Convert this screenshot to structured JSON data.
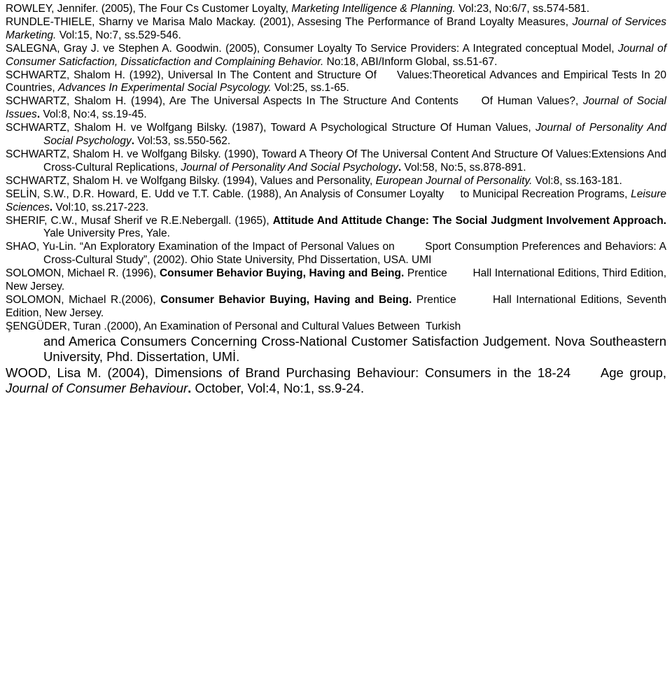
{
  "refs": {
    "rowley": {
      "author": "ROWLEY, Jennifer.",
      "year": "(2005),",
      "title": "The Four Cs Customer Loyalty,",
      "journal": "Marketing Intelligence & Planning.",
      "vol": "Vol:23, No:6/7, ss.574-581."
    },
    "rundle": {
      "line1a": "RUNDLE-THIELE, Sharny ve Marisa Malo Mackay.",
      "line1b": "(2001), Assesing The",
      "line2a": "Performance of",
      "line2b": "Brand Loyalty Measures,",
      "journal": "Journal of Services Marketing.",
      "vol": "Vol:15, No:7, ss.529-546."
    },
    "salegna": {
      "line1a": "SALEGNA, Gray J. ve Stephen A. Goodwin.",
      "line1b": "(2005), Consumer Loyalty To Service",
      "line2a": "Providers:",
      "line2b": "A Integrated conceptual Model,",
      "journal": "Journal of Consumer Saticfaction, Dissaticfaction          and Complaining Behavior.",
      "vol": "No:18, ABI/Inform Global, ss.51-67."
    },
    "schwartz92": {
      "line1a": "SCHWARTZ, Shalom H.",
      "line1b": "(1992), Universal In The Content and Structure Of",
      "line1c": "Values:Theoretical",
      "line2a": "Advances and Empirical Tests In 20 Countries,",
      "journal": "Advances In    Experimental    Social    Psycology.",
      "vol": "Vol:25, ss.1-65."
    },
    "schwartz94a": {
      "line1a": "SCHWARTZ, Shalom H.",
      "line1b": "(1994), Are The Universal Aspects In The Structure And Contents",
      "line1c": "Of",
      "line2a": "Human Values?,",
      "journal": "Journal of Social Issues",
      "bolddot": ".",
      "vol": "Vol:8, No:4, ss.19-45."
    },
    "schwartz87": {
      "line1": "SCHWARTZ, Shalom H. ve Wolfgang Bilsky.  (1987), Toward A Psychological Structure Of Human Values,",
      "journal": "Journal of Personality And Social Psychology",
      "bolddot": ".",
      "vol": "Vol:53, ss.550-562."
    },
    "schwartz90": {
      "line1a": "SCHWARTZ, Shalom H. ve Wolfgang Bilsky.",
      "line1b": "(1990), Toward A Theory Of The Universal Content And Structure Of Values:Extensions And Cross-Cultural Replications,",
      "journal": "Journal of Personality And Social Psychology",
      "bolddot": ".",
      "vol": "Vol:58, No:5, ss.878-891."
    },
    "schwartz94b": {
      "line1": "SCHWARTZ, Shalom H. ve Wolfgang Bilsky. (1994), Values and Personality,",
      "journal": "European Journal of Personality.",
      "vol": "Vol:8, ss.163-181."
    },
    "selin": {
      "line1a": "SELİN, S.W., D.R. Howard, E. Udd ve T.T. Cable.",
      "line1b": "(1988), An Analysis of Consumer Loyalty",
      "line1c": "to",
      "line2": "Municipal Recreation Programs,",
      "journal": "Leisure Sciences",
      "bolddot": ".",
      "vol": "Vol:10, ss.217-223."
    },
    "sherif": {
      "line1": "SHERIF, C.W., Musaf Sherif ve R.E.Nebergall. (1965),",
      "title": "Attitude And Attitude Change: The Social Judgment Involvement Approach.",
      "pub": "Yale University Pres, Yale."
    },
    "shao": {
      "line1a": "SHAO, Yu-Lin. “",
      "line1b": "An Exploratory Examination of the Impact of Personal Values on",
      "line1c": "Sport",
      "line2": "Consumption Preferences and Behaviors: A Cross-Cultural Study”, (2002). Ohio State University, Phd Dissertation, USA. UMI"
    },
    "solomon96": {
      "line1a": "SOLOMON, Michael R.",
      "line1b": "(1996),",
      "title": "Consumer Behavior Buying, Having and Being.",
      "pub1": "Prentice",
      "pub2": "Hall",
      "line2": "International Editions, Third Edition, New Jersey."
    },
    "solomon06": {
      "line1a": "SOLOMON, Michael R.",
      "line1b": "(2006),",
      "title": "Consumer Behavior Buying, Having and Being.",
      "pub1": "Prentice",
      "pub2": "Hall",
      "line2": "International Editions, Seventh Edition, New Jersey."
    },
    "senguder": {
      "line1a": "ŞENGÜDER, Turan .",
      "line1b": "(2000), An Examination of Personal and Cultural Values Between",
      "line1c": "Turkish",
      "line2": "and America Consumers Concerning Cross-National Customer Satisfaction Judgement. Nova Southeastern University, Phd. Dissertation, UMİ."
    },
    "wood": {
      "line1a": "WOOD, Lisa M.",
      "line1b": "(2004), Dimensions of Brand Purchasing Behaviour: Consumers in",
      "line2a": "the 18-24",
      "line2b": "Age group,",
      "journal": "Journal of Consumer Behaviour",
      "bolddot": ".",
      "vol": "October, Vol:4, No:1, ss.9-24."
    }
  }
}
